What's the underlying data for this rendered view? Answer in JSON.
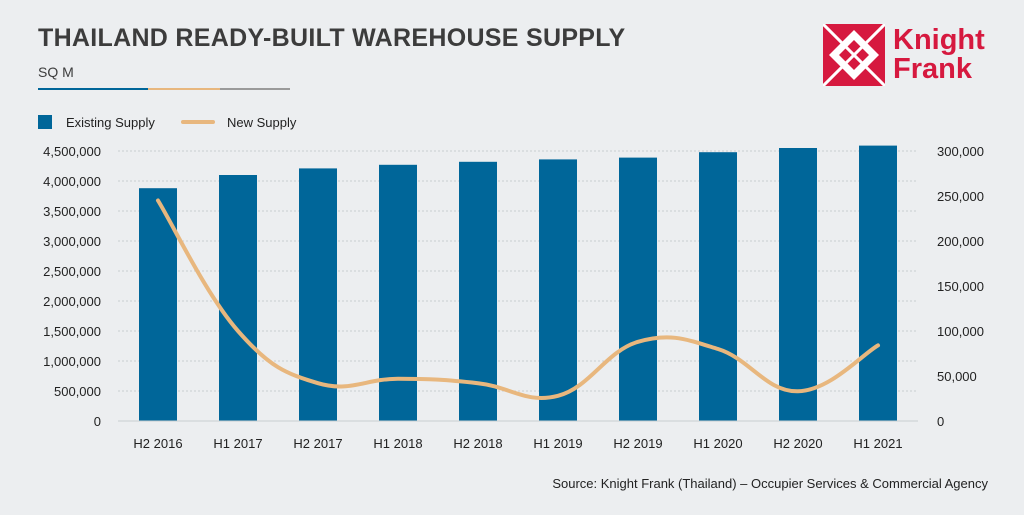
{
  "header": {
    "title": "THAILAND READY-BUILT WAREHOUSE SUPPLY",
    "subtitle": "SQ M"
  },
  "logo": {
    "line1": "Knight",
    "line2": "Frank"
  },
  "source": "Source: Knight Frank (Thailand) – Occupier Services & Commercial Agency",
  "colors": {
    "bar": "#006699",
    "line": "#e8b77e",
    "brand": "#d6193f"
  },
  "chart_data": {
    "type": "bar",
    "categories": [
      "H2 2016",
      "H1 2017",
      "H2 2017",
      "H1 2018",
      "H2 2018",
      "H1 2019",
      "H2 2019",
      "H1 2020",
      "H2 2020",
      "H1 2021"
    ],
    "series": [
      {
        "name": "Existing Supply",
        "type": "bar",
        "axis": "left",
        "values": [
          3880000,
          4100000,
          4210000,
          4270000,
          4320000,
          4360000,
          4390000,
          4480000,
          4550000,
          4590000
        ]
      },
      {
        "name": "New Supply",
        "type": "line",
        "axis": "right",
        "values": [
          245000,
          100000,
          42000,
          47000,
          42000,
          28000,
          88000,
          80000,
          33000,
          84000
        ]
      }
    ],
    "y_left": {
      "range": [
        0,
        4500000
      ],
      "ticks": [
        "0",
        "500,000",
        "1,000,000",
        "1,500,000",
        "2,000,000",
        "2,500,000",
        "3,000,000",
        "3,500,000",
        "4,000,000",
        "4,500,000"
      ]
    },
    "y_right": {
      "range": [
        0,
        300000
      ],
      "ticks": [
        "0",
        "50,000",
        "100,000",
        "150,000",
        "200,000",
        "250,000",
        "300,000"
      ]
    },
    "legend_position": "top-left",
    "grid": true
  }
}
